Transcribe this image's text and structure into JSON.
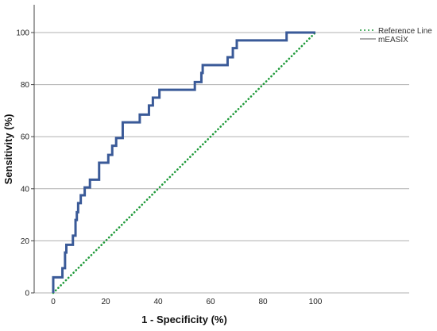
{
  "chart_data": {
    "type": "line",
    "title": "",
    "xlabel": "1 - Specificity (%)",
    "ylabel": "Sensitivity (%)",
    "xlim": [
      0,
      100
    ],
    "ylim": [
      0,
      100
    ],
    "xticks": [
      0,
      20,
      40,
      60,
      80,
      100
    ],
    "yticks": [
      0,
      20,
      40,
      60,
      80,
      100
    ],
    "grid": "horizontal",
    "legend_position": "top-right",
    "colors": {
      "reference": "#1f9a3a",
      "roc": "#3a5a98",
      "grid": "#b0b0b0",
      "axis": "#444444"
    },
    "series": [
      {
        "name": "Reference Line",
        "style": "dotted",
        "x": [
          0,
          100
        ],
        "y": [
          0,
          100
        ]
      },
      {
        "name": "mEASİX",
        "style": "solid",
        "x": [
          0,
          0,
          3.5,
          3.5,
          4.5,
          4.5,
          5,
          5,
          7.5,
          7.5,
          8.5,
          8.5,
          9,
          9,
          9.5,
          9.5,
          10.5,
          10.5,
          12,
          12,
          14,
          14,
          17.5,
          17.5,
          21,
          21,
          22.5,
          22.5,
          24,
          24,
          26.5,
          26.5,
          33,
          33,
          36.5,
          36.5,
          38,
          38,
          40.5,
          40.5,
          54,
          54,
          56.5,
          56.5,
          57,
          57,
          66.5,
          66.5,
          68.5,
          68.5,
          70,
          70,
          89,
          89,
          100
        ],
        "y": [
          0,
          6,
          6,
          9.5,
          9.5,
          15.5,
          15.5,
          18.5,
          18.5,
          22,
          22,
          28,
          28,
          31,
          31,
          34.5,
          34.5,
          37.5,
          37.5,
          40.5,
          40.5,
          43.5,
          43.5,
          50,
          50,
          53,
          53,
          56.5,
          56.5,
          59.5,
          59.5,
          65.5,
          65.5,
          68.5,
          68.5,
          72,
          72,
          75,
          75,
          78,
          78,
          81,
          81,
          84.5,
          84.5,
          87.5,
          87.5,
          90.5,
          90.5,
          94,
          94,
          97,
          97,
          100,
          100
        ]
      }
    ]
  }
}
